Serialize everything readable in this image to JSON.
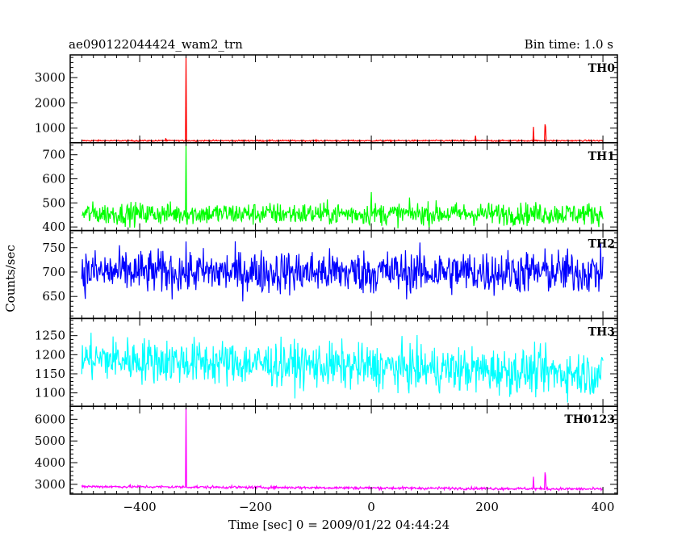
{
  "header": {
    "title": "ae090122044424_wam2_trn",
    "bin_time": "Bin time: 1.0 s"
  },
  "chart_data": {
    "type": "line",
    "title": "ae090122044424_wam2_trn",
    "subtitle": "Bin time: 1.0 s",
    "xlabel": "Time [sec] 0 = 2009/01/22 04:44:24",
    "ylabel": "Counts/sec",
    "xlim": [
      -520,
      425
    ],
    "x_ticks": [
      -400,
      -200,
      0,
      200,
      400
    ],
    "x_data_range": [
      -500,
      400
    ],
    "grid": false,
    "panels": [
      {
        "name": "TH0",
        "color": "#ff0000",
        "ylim": [
          420,
          3900
        ],
        "y_ticks": [
          1000,
          2000,
          3000
        ],
        "baseline": 500,
        "noise": 20,
        "spikes": [
          {
            "x": -320,
            "y": 3850
          },
          {
            "x": -355,
            "y": 600
          },
          {
            "x": 180,
            "y": 700
          },
          {
            "x": 280,
            "y": 1050
          },
          {
            "x": 300,
            "y": 1150
          },
          {
            "x": 301,
            "y": 1050
          }
        ]
      },
      {
        "name": "TH1",
        "color": "#00ff00",
        "ylim": [
          385,
          750
        ],
        "y_ticks": [
          400,
          500,
          600,
          700
        ],
        "baseline": 455,
        "noise": 33,
        "spikes": [
          {
            "x": -320,
            "y": 745
          },
          {
            "x": 0,
            "y": 545
          }
        ]
      },
      {
        "name": "TH2",
        "color": "#0000ff",
        "ylim": [
          605,
          785
        ],
        "y_ticks": [
          650,
          700,
          750
        ],
        "baseline": 700,
        "noise": 32,
        "spikes": []
      },
      {
        "name": "TH3",
        "color": "#00ffff",
        "ylim": [
          1065,
          1295
        ],
        "y_ticks": [
          1100,
          1150,
          1200,
          1250
        ],
        "baseline": 1190,
        "baseline_end": 1150,
        "noise": 42,
        "spikes": []
      },
      {
        "name": "TH0123",
        "color": "#ff00ff",
        "ylim": [
          2550,
          6600
        ],
        "y_ticks": [
          3000,
          4000,
          5000,
          6000
        ],
        "baseline": 2900,
        "baseline_end": 2780,
        "noise": 45,
        "spikes": [
          {
            "x": -320,
            "y": 6550
          },
          {
            "x": 280,
            "y": 3350
          },
          {
            "x": 300,
            "y": 3550
          },
          {
            "x": 301,
            "y": 3400
          }
        ]
      }
    ]
  }
}
